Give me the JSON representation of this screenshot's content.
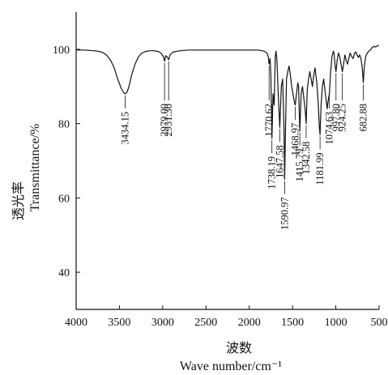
{
  "chart_data": {
    "type": "line",
    "xlabel_cn": "波数",
    "xlabel_en": "Wave  number/cm⁻¹",
    "ylabel_cn": "透光率",
    "ylabel_en": "Transmittance/%",
    "xlim": [
      4000,
      500
    ],
    "ylim": [
      30,
      110
    ],
    "x_ticks": [
      4000,
      3500,
      3000,
      2500,
      2000,
      1500,
      1000,
      500
    ],
    "y_ticks": [
      40,
      60,
      80,
      100
    ],
    "series": [
      {
        "points": [
          [
            4000,
            99.8
          ],
          [
            3900,
            99.8
          ],
          [
            3800,
            99.6
          ],
          [
            3750,
            99.5
          ],
          [
            3700,
            99.2
          ],
          [
            3650,
            98.5
          ],
          [
            3600,
            97.0
          ],
          [
            3560,
            95.0
          ],
          [
            3520,
            92.0
          ],
          [
            3480,
            89.5
          ],
          [
            3450,
            88.3
          ],
          [
            3434.15,
            88.0
          ],
          [
            3410,
            88.5
          ],
          [
            3390,
            90.0
          ],
          [
            3360,
            93.0
          ],
          [
            3320,
            96.0
          ],
          [
            3280,
            98.0
          ],
          [
            3240,
            99.0
          ],
          [
            3200,
            99.4
          ],
          [
            3150,
            99.6
          ],
          [
            3100,
            99.6
          ],
          [
            3050,
            99.4
          ],
          [
            3020,
            99.0
          ],
          [
            2990,
            98.0
          ],
          [
            2979,
            96.8
          ],
          [
            2965,
            98.3
          ],
          [
            2950,
            98.0
          ],
          [
            2931.3,
            97.2
          ],
          [
            2915,
            98.5
          ],
          [
            2880,
            99.3
          ],
          [
            2800,
            99.6
          ],
          [
            2700,
            99.8
          ],
          [
            2600,
            99.8
          ],
          [
            2500,
            99.8
          ],
          [
            2400,
            99.8
          ],
          [
            2300,
            99.8
          ],
          [
            2200,
            99.8
          ],
          [
            2100,
            99.8
          ],
          [
            2000,
            99.8
          ],
          [
            1900,
            99.8
          ],
          [
            1850,
            99.6
          ],
          [
            1820,
            99.4
          ],
          [
            1795,
            99.0
          ],
          [
            1780,
            98.0
          ],
          [
            1770.62,
            96.0
          ],
          [
            1760,
            97.5
          ],
          [
            1750,
            93.0
          ],
          [
            1738.19,
            76.0
          ],
          [
            1725,
            88.0
          ],
          [
            1712,
            85.0
          ],
          [
            1700,
            98.0
          ],
          [
            1690,
            99.5
          ],
          [
            1680,
            97.0
          ],
          [
            1665,
            88.0
          ],
          [
            1647.58,
            79.0
          ],
          [
            1630,
            90.0
          ],
          [
            1615,
            92.0
          ],
          [
            1600,
            80.0
          ],
          [
            1590.97,
            65.0
          ],
          [
            1580,
            80.0
          ],
          [
            1570,
            92.0
          ],
          [
            1555,
            94.0
          ],
          [
            1540,
            95.5
          ],
          [
            1525,
            93.0
          ],
          [
            1510,
            90.0
          ],
          [
            1495,
            88.0
          ],
          [
            1480,
            86.0
          ],
          [
            1468.97,
            85.0
          ],
          [
            1455,
            88.0
          ],
          [
            1440,
            91.0
          ],
          [
            1430,
            90.0
          ],
          [
            1415.79,
            78.0
          ],
          [
            1400,
            88.0
          ],
          [
            1385,
            90.0
          ],
          [
            1370,
            87.0
          ],
          [
            1355,
            84.0
          ],
          [
            1342.58,
            80.0
          ],
          [
            1330,
            89.0
          ],
          [
            1315,
            92.0
          ],
          [
            1300,
            94.0
          ],
          [
            1285,
            92.0
          ],
          [
            1270,
            90.0
          ],
          [
            1255,
            93.0
          ],
          [
            1240,
            95.0
          ],
          [
            1220,
            91.0
          ],
          [
            1205,
            86.0
          ],
          [
            1190,
            79.0
          ],
          [
            1181.99,
            77.0
          ],
          [
            1170,
            85.0
          ],
          [
            1155,
            90.0
          ],
          [
            1140,
            92.0
          ],
          [
            1125,
            89.0
          ],
          [
            1110,
            86.0
          ],
          [
            1100,
            84.0
          ],
          [
            1090,
            86.0
          ],
          [
            1074.63,
            88.0
          ],
          [
            1060,
            94.0
          ],
          [
            1045,
            98.0
          ],
          [
            1030,
            99.5
          ],
          [
            1020,
            99.0
          ],
          [
            1010,
            96.0
          ],
          [
            997.8,
            94.0
          ],
          [
            985,
            97.0
          ],
          [
            970,
            99.0
          ],
          [
            955,
            98.0
          ],
          [
            940,
            96.0
          ],
          [
            924.25,
            94.0
          ],
          [
            910,
            96.0
          ],
          [
            895,
            98.5
          ],
          [
            880,
            97.0
          ],
          [
            865,
            96.0
          ],
          [
            850,
            97.5
          ],
          [
            835,
            99.0
          ],
          [
            815,
            98.0
          ],
          [
            800,
            97.5
          ],
          [
            785,
            98.8
          ],
          [
            770,
            99.3
          ],
          [
            755,
            98.5
          ],
          [
            740,
            97.8
          ],
          [
            725,
            98.5
          ],
          [
            710,
            97.5
          ],
          [
            695,
            95.0
          ],
          [
            682.88,
            91.0
          ],
          [
            670,
            95.5
          ],
          [
            655,
            98.0
          ],
          [
            640,
            98.8
          ],
          [
            620,
            99.5
          ],
          [
            600,
            99.8
          ],
          [
            580,
            100.5
          ],
          [
            560,
            100.8
          ],
          [
            540,
            100.6
          ],
          [
            520,
            101.0
          ],
          [
            500,
            101.0
          ]
        ]
      }
    ],
    "annotations": [
      {
        "label": "3434.15",
        "x": 3434.15,
        "y": 88.0
      },
      {
        "label": "2979.00",
        "x": 2979.0,
        "y": 96.8
      },
      {
        "label": "2931.30",
        "x": 2931.3,
        "y": 97.2
      },
      {
        "label": "1770.62",
        "x": 1770.62,
        "y": 96.0
      },
      {
        "label": "1738.19",
        "x": 1738.19,
        "y": 76.0
      },
      {
        "label": "1647.58",
        "x": 1647.58,
        "y": 79.0
      },
      {
        "label": "1590.97",
        "x": 1590.97,
        "y": 65.0
      },
      {
        "label": "1468.97",
        "x": 1468.97,
        "y": 85.0
      },
      {
        "label": "1415.79",
        "x": 1415.79,
        "y": 78.0
      },
      {
        "label": "1342.58",
        "x": 1342.58,
        "y": 80.0
      },
      {
        "label": "1181.99",
        "x": 1181.99,
        "y": 77.0
      },
      {
        "label": "1074.63",
        "x": 1074.63,
        "y": 88.0
      },
      {
        "label": "997.80",
        "x": 997.8,
        "y": 94.0
      },
      {
        "label": "924.25",
        "x": 924.25,
        "y": 94.0
      },
      {
        "label": "682.88",
        "x": 682.88,
        "y": 91.0
      }
    ]
  }
}
